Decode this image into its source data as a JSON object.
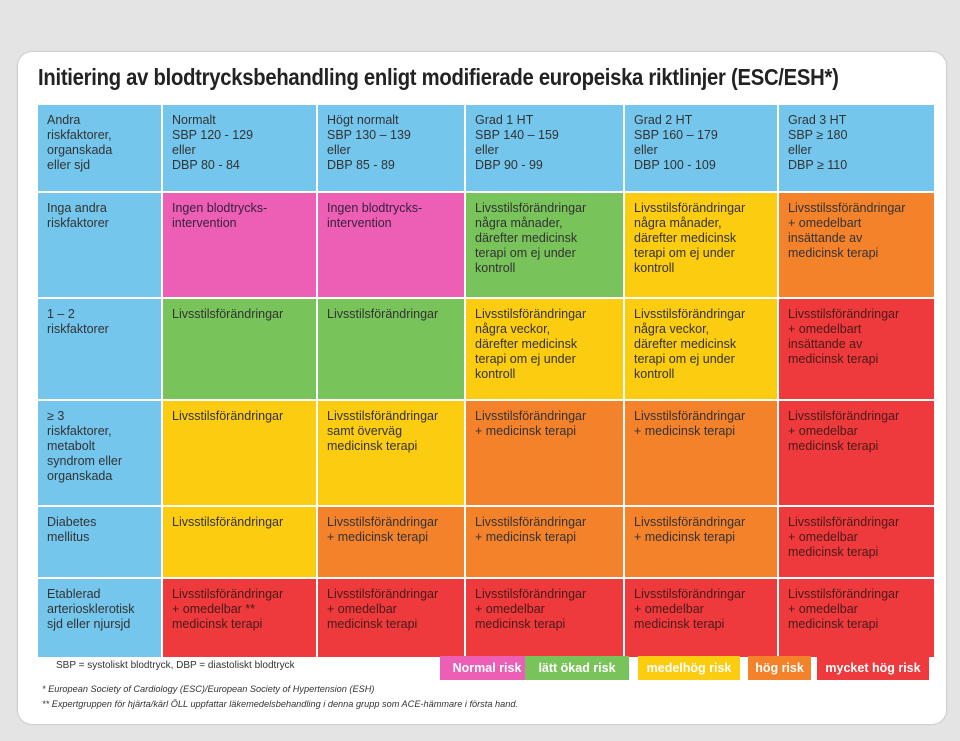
{
  "title": "Initiering av blodtrycksbehandling enligt modifierade europeiska riktlinjer (ESC/ESH*)",
  "colors": {
    "header": "#74c6ec",
    "pink": "#ec5fb4",
    "green": "#78c35a",
    "yellow": "#fbcc10",
    "orange": "#f4822b",
    "red": "#ee3a3d"
  },
  "table": {
    "header": [
      "Andra\nriskfaktorer,\norganskada\neller sjd",
      "Normalt\nSBP 120 - 129\neller\nDBP 80 - 84",
      "Högt normalt\nSBP 130 – 139\neller\nDBP 85 - 89",
      "Grad 1 HT\nSBP 140 – 159\neller\nDBP 90 - 99",
      "Grad 2 HT\nSBP 160 – 179\neller\nDBP 100 - 109",
      "Grad 3 HT\nSBP ≥ 180\neller\nDBP ≥ 110"
    ],
    "rows": [
      {
        "label": "Inga andra\nriskfaktorer",
        "cells": [
          {
            "text": "Ingen blodtrycks-\nintervention",
            "color": "pink"
          },
          {
            "text": "Ingen blodtrycks-\nintervention",
            "color": "pink"
          },
          {
            "text": "Livsstilsförändringar\nnågra månader,\ndärefter medicinsk\nterapi om ej under\nkontroll",
            "color": "green"
          },
          {
            "text": "Livsstilsförändringar\nnågra månader,\ndärefter medicinsk\nterapi om ej under\nkontroll",
            "color": "yellow"
          },
          {
            "text": "Livsstilssförändringar\n+ omedelbart\ninsättande av\nmedicinsk terapi",
            "color": "orange"
          }
        ]
      },
      {
        "label": "1 – 2\nriskfaktorer",
        "cells": [
          {
            "text": "Livsstilsförändringar",
            "color": "green"
          },
          {
            "text": "Livsstilsförändringar",
            "color": "green"
          },
          {
            "text": "Livsstilsförändringar\nnågra veckor,\ndärefter medicinsk\nterapi om ej under\nkontroll",
            "color": "yellow"
          },
          {
            "text": "Livsstilsförändringar\nnågra veckor,\ndärefter medicinsk\nterapi om ej under\nkontroll",
            "color": "yellow"
          },
          {
            "text": "Livsstilsförändringar\n+ omedelbart\ninsättande av\nmedicinsk terapi",
            "color": "red"
          }
        ]
      },
      {
        "label": "≥ 3\nriskfaktorer,\nmetabolt\nsyndrom eller\norganskada",
        "cells": [
          {
            "text": "Livsstilsförändringar",
            "color": "yellow"
          },
          {
            "text": "Livsstilsförändringar\nsamt överväg\nmedicinsk terapi",
            "color": "yellow"
          },
          {
            "text": "Livsstilsförändringar\n+ medicinsk terapi",
            "color": "orange"
          },
          {
            "text": "Livsstilsförändringar\n+ medicinsk terapi",
            "color": "orange"
          },
          {
            "text": "Livsstilsförändringar\n+ omedelbar\nmedicinsk terapi",
            "color": "red"
          }
        ]
      },
      {
        "label": "Diabetes\nmellitus",
        "cells": [
          {
            "text": "Livsstilsförändringar",
            "color": "yellow"
          },
          {
            "text": "Livsstilsförändringar\n+ medicinsk terapi",
            "color": "orange"
          },
          {
            "text": "Livsstilsförändringar\n+ medicinsk terapi",
            "color": "orange"
          },
          {
            "text": "Livsstilsförändringar\n+ medicinsk terapi",
            "color": "orange"
          },
          {
            "text": "Livsstilsförändringar\n+ omedelbar\nmedicinsk terapi",
            "color": "red"
          }
        ]
      },
      {
        "label": "Etablerad\narteriosklerotisk\nsjd eller njursjd",
        "cells": [
          {
            "text": "Livsstilsförändringar\n+ omedelbar **\nmedicinsk terapi",
            "color": "red"
          },
          {
            "text": "Livsstilsförändringar\n+ omedelbar\nmedicinsk terapi",
            "color": "red"
          },
          {
            "text": "Livsstilsförändringar\n+ omedelbar\nmedicinsk terapi",
            "color": "red"
          },
          {
            "text": "Livsstilsförändringar\n+ omedelbar\nmedicinsk terapi",
            "color": "red"
          },
          {
            "text": "Livsstilsförändringar\n+ omedelbar\nmedicinsk terapi",
            "color": "red"
          }
        ]
      }
    ]
  },
  "footnotes": {
    "abbrev": "SBP = systoliskt blodtryck, DBP = diastoliskt blodtryck",
    "note1": "*  European Society of Cardiology (ESC)/European Society of  Hypertension (ESH)",
    "note2": "** Expertgruppen för hjärta/kärl ÖLL uppfattar läkemedelsbehandling i denna grupp som ACE-hämmare i första hand."
  },
  "legend": [
    {
      "label": "Normal risk",
      "color": "pink"
    },
    {
      "label": "lätt ökad risk",
      "color": "green"
    },
    {
      "label": "medelhög risk",
      "color": "yellow"
    },
    {
      "label": "hög risk",
      "color": "orange"
    },
    {
      "label": "mycket hög risk",
      "color": "red"
    }
  ]
}
